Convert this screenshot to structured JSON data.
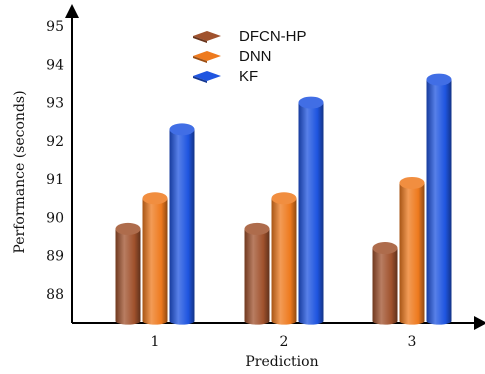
{
  "chart_data": {
    "type": "bar",
    "style": "3d-cylinder",
    "title": "",
    "xlabel": "Prediction",
    "ylabel": "Performance (seconds)",
    "categories": [
      "1",
      "2",
      "3"
    ],
    "ylim": [
      87.3,
      95.3
    ],
    "yticks": [
      88,
      89,
      90,
      91,
      92,
      93,
      94,
      95
    ],
    "grid": false,
    "legend_position": "top-center",
    "series": [
      {
        "name": "DFCN-HP",
        "color": "#a0522d",
        "values": [
          89.7,
          89.7,
          89.2
        ]
      },
      {
        "name": "DNN",
        "color": "#ee7a1e",
        "values": [
          90.5,
          90.5,
          90.9
        ]
      },
      {
        "name": "KF",
        "color": "#1f55e0",
        "values": [
          92.3,
          93.0,
          93.6
        ]
      }
    ]
  }
}
